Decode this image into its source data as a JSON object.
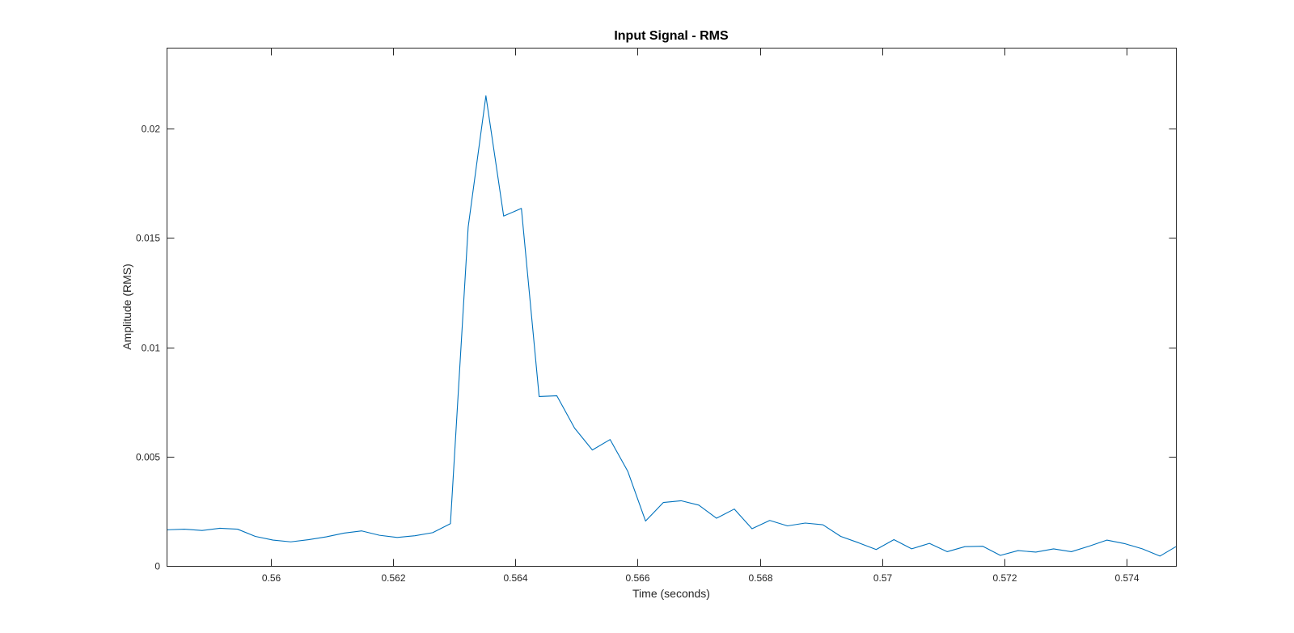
{
  "chart_data": {
    "type": "line",
    "title": "Input Signal - RMS",
    "xlabel": "Time (seconds)",
    "ylabel": "Amplitude (RMS)",
    "xlim": [
      0.5583,
      0.5748
    ],
    "ylim": [
      0,
      0.0237
    ],
    "xticks": [
      0.56,
      0.562,
      0.564,
      0.566,
      0.568,
      0.57,
      0.572,
      0.574
    ],
    "xtick_labels": [
      "0.56",
      "0.562",
      "0.564",
      "0.566",
      "0.568",
      "0.57",
      "0.572",
      "0.574"
    ],
    "yticks": [
      0,
      0.005,
      0.01,
      0.015,
      0.02
    ],
    "ytick_labels": [
      "0",
      "0.005",
      "0.01",
      "0.015",
      "0.02"
    ],
    "grid": false,
    "box": true,
    "series": [
      {
        "color": "#0072BD",
        "x": [
          0.5583,
          0.55859,
          0.55888,
          0.55917,
          0.55946,
          0.55975,
          0.56004,
          0.56033,
          0.56062,
          0.56091,
          0.5612,
          0.56149,
          0.56178,
          0.56207,
          0.56236,
          0.56265,
          0.56294,
          0.56323,
          0.56352,
          0.56381,
          0.5641,
          0.56439,
          0.56468,
          0.56497,
          0.56526,
          0.56555,
          0.56584,
          0.56613,
          0.56642,
          0.56671,
          0.567,
          0.56729,
          0.56758,
          0.56787,
          0.56816,
          0.56845,
          0.56874,
          0.56903,
          0.56932,
          0.56961,
          0.5699,
          0.57019,
          0.57048,
          0.57077,
          0.57106,
          0.57135,
          0.57164,
          0.57193,
          0.57222,
          0.57251,
          0.5728,
          0.57309,
          0.57338,
          0.57367,
          0.57396,
          0.57425,
          0.57454,
          0.5748
        ],
        "y": [
          0.00165,
          0.00168,
          0.00162,
          0.00172,
          0.00168,
          0.00135,
          0.00118,
          0.0011,
          0.0012,
          0.00133,
          0.0015,
          0.0016,
          0.0014,
          0.0013,
          0.00138,
          0.00152,
          0.00193,
          0.0155,
          0.0215,
          0.016,
          0.01635,
          0.00775,
          0.00778,
          0.0063,
          0.0053,
          0.00578,
          0.00432,
          0.00205,
          0.0029,
          0.00298,
          0.00278,
          0.00218,
          0.0026,
          0.0017,
          0.00208,
          0.00183,
          0.00196,
          0.00188,
          0.00135,
          0.00106,
          0.00075,
          0.0012,
          0.00078,
          0.00103,
          0.00065,
          0.00088,
          0.0009,
          0.00048,
          0.0007,
          0.00063,
          0.00078,
          0.00065,
          0.0009,
          0.00118,
          0.00102,
          0.00078,
          0.00045,
          0.00088
        ]
      }
    ]
  }
}
